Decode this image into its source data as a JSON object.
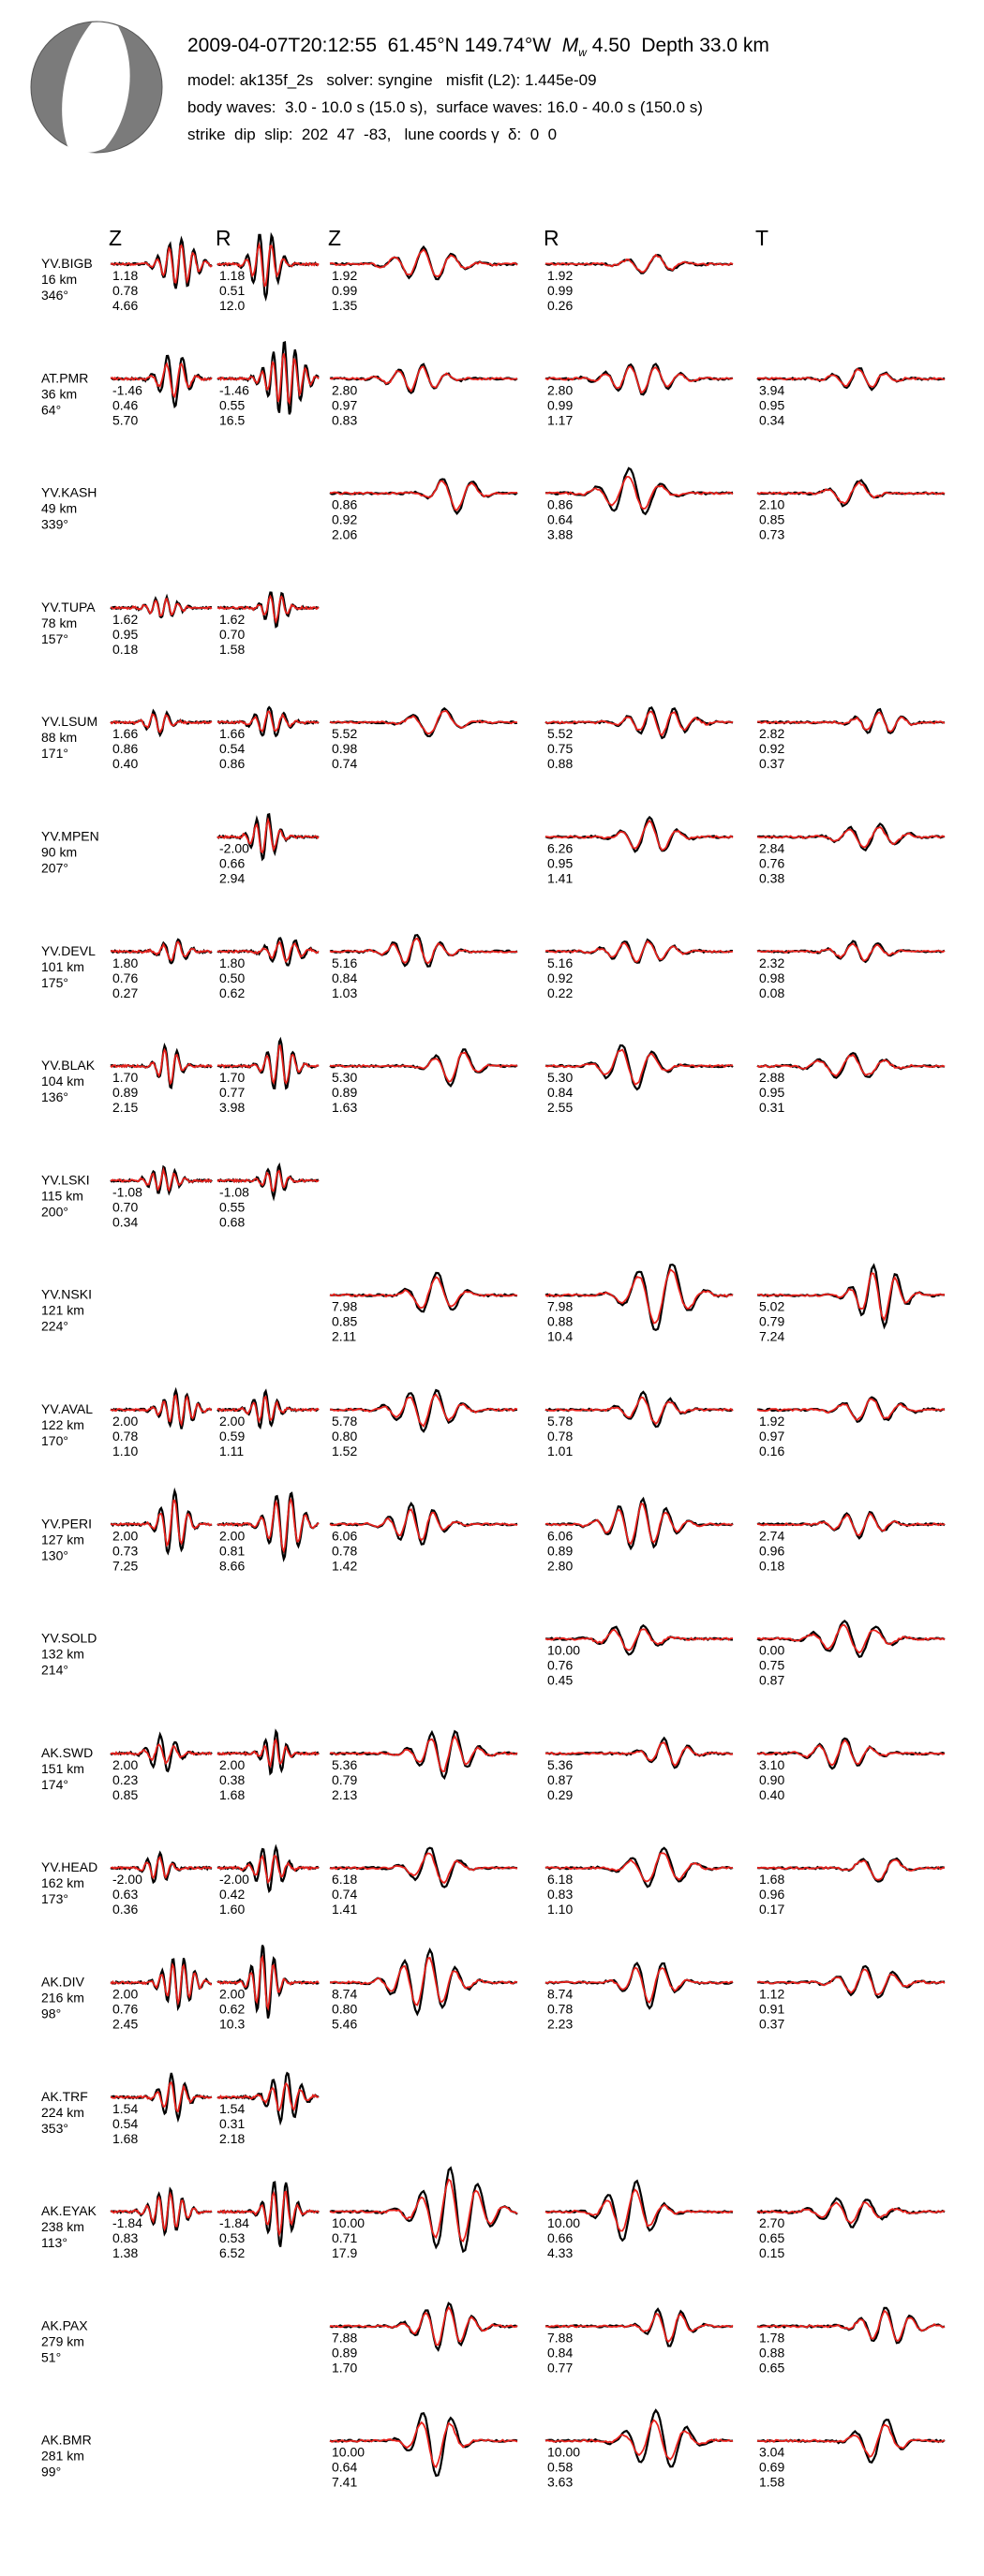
{
  "header": {
    "event_time": "2009-04-07T20:12:55",
    "lat": "61.45°N",
    "lon": "149.74°W",
    "mag_label": "M",
    "mag_sub": "w",
    "mag": "4.50",
    "depth_label": "Depth",
    "depth": "33.0 km",
    "model_line": "model: ak135f_2s   solver: syngine   misfit (L2): 1.445e-09",
    "waves_line": "body waves:  3.0 - 10.0 s (15.0 s),  surface waves: 16.0 - 40.0 s (150.0 s)",
    "mech_line": "strike  dip  slip:  202  47  -83,   lune coords γ  δ:  0  0"
  },
  "colors": {
    "observed": "#000000",
    "synthetic": "#e8221d",
    "beachball": "#7b7b7b"
  },
  "chart_data": {
    "type": "waveform-panel",
    "column_headers": [
      "Z",
      "R",
      "Z",
      "R",
      "T"
    ],
    "series_legend": [
      "observed (black)",
      "synthetic (red)"
    ],
    "stations": [
      {
        "name": "YV.BIGB",
        "dist": "16 km",
        "az": "346°",
        "cols": [
          [
            "1.18",
            "0.78",
            "4.66"
          ],
          [
            "1.18",
            "0.51",
            "12.0"
          ],
          [
            "1.92",
            "0.99",
            "1.35"
          ],
          [
            "1.92",
            "0.99",
            "0.26"
          ],
          null
        ]
      },
      {
        "name": "AT.PMR",
        "dist": "36 km",
        "az": "64°",
        "cols": [
          [
            "-1.46",
            "0.46",
            "5.70"
          ],
          [
            "-1.46",
            "0.55",
            "16.5"
          ],
          [
            "2.80",
            "0.97",
            "0.83"
          ],
          [
            "2.80",
            "0.99",
            "1.17"
          ],
          [
            "3.94",
            "0.95",
            "0.34"
          ]
        ]
      },
      {
        "name": "YV.KASH",
        "dist": "49 km",
        "az": "339°",
        "cols": [
          null,
          null,
          [
            "0.86",
            "0.92",
            "2.06"
          ],
          [
            "0.86",
            "0.64",
            "3.88"
          ],
          [
            "2.10",
            "0.85",
            "0.73"
          ]
        ]
      },
      {
        "name": "YV.TUPA",
        "dist": "78 km",
        "az": "157°",
        "cols": [
          [
            "1.62",
            "0.95",
            "0.18"
          ],
          [
            "1.62",
            "0.70",
            "1.58"
          ],
          null,
          null,
          null
        ]
      },
      {
        "name": "YV.LSUM",
        "dist": "88 km",
        "az": "171°",
        "cols": [
          [
            "1.66",
            "0.86",
            "0.40"
          ],
          [
            "1.66",
            "0.54",
            "0.86"
          ],
          [
            "5.52",
            "0.98",
            "0.74"
          ],
          [
            "5.52",
            "0.75",
            "0.88"
          ],
          [
            "2.82",
            "0.92",
            "0.37"
          ]
        ]
      },
      {
        "name": "YV.MPEN",
        "dist": "90 km",
        "az": "207°",
        "cols": [
          null,
          [
            "-2.00",
            "0.66",
            "2.94"
          ],
          null,
          [
            "6.26",
            "0.95",
            "1.41"
          ],
          [
            "2.84",
            "0.76",
            "0.38"
          ]
        ]
      },
      {
        "name": "YV.DEVL",
        "dist": "101 km",
        "az": "175°",
        "cols": [
          [
            "1.80",
            "0.76",
            "0.27"
          ],
          [
            "1.80",
            "0.50",
            "0.62"
          ],
          [
            "5.16",
            "0.84",
            "1.03"
          ],
          [
            "5.16",
            "0.92",
            "0.22"
          ],
          [
            "2.32",
            "0.98",
            "0.08"
          ]
        ]
      },
      {
        "name": "YV.BLAK",
        "dist": "104 km",
        "az": "136°",
        "cols": [
          [
            "1.70",
            "0.89",
            "2.15"
          ],
          [
            "1.70",
            "0.77",
            "3.98"
          ],
          [
            "5.30",
            "0.89",
            "1.63"
          ],
          [
            "5.30",
            "0.84",
            "2.55"
          ],
          [
            "2.88",
            "0.95",
            "0.31"
          ]
        ]
      },
      {
        "name": "YV.LSKI",
        "dist": "115 km",
        "az": "200°",
        "cols": [
          [
            "-1.08",
            "0.70",
            "0.34"
          ],
          [
            "-1.08",
            "0.55",
            "0.68"
          ],
          null,
          null,
          null
        ]
      },
      {
        "name": "YV.NSKI",
        "dist": "121 km",
        "az": "224°",
        "cols": [
          null,
          null,
          [
            "7.98",
            "0.85",
            "2.11"
          ],
          [
            "7.98",
            "0.88",
            "10.4"
          ],
          [
            "5.02",
            "0.79",
            "7.24"
          ]
        ]
      },
      {
        "name": "YV.AVAL",
        "dist": "122 km",
        "az": "170°",
        "cols": [
          [
            "2.00",
            "0.78",
            "1.10"
          ],
          [
            "2.00",
            "0.59",
            "1.11"
          ],
          [
            "5.78",
            "0.80",
            "1.52"
          ],
          [
            "5.78",
            "0.78",
            "1.01"
          ],
          [
            "1.92",
            "0.97",
            "0.16"
          ]
        ]
      },
      {
        "name": "YV.PERI",
        "dist": "127 km",
        "az": "130°",
        "cols": [
          [
            "2.00",
            "0.73",
            "7.25"
          ],
          [
            "2.00",
            "0.81",
            "8.66"
          ],
          [
            "6.06",
            "0.78",
            "1.42"
          ],
          [
            "6.06",
            "0.89",
            "2.80"
          ],
          [
            "2.74",
            "0.96",
            "0.18"
          ]
        ]
      },
      {
        "name": "YV.SOLD",
        "dist": "132 km",
        "az": "214°",
        "cols": [
          null,
          null,
          null,
          [
            "10.00",
            "0.76",
            "0.45"
          ],
          [
            "0.00",
            "0.75",
            "0.87"
          ]
        ]
      },
      {
        "name": "AK.SWD",
        "dist": "151 km",
        "az": "174°",
        "cols": [
          [
            "2.00",
            "0.23",
            "0.85"
          ],
          [
            "2.00",
            "0.38",
            "1.68"
          ],
          [
            "5.36",
            "0.79",
            "2.13"
          ],
          [
            "5.36",
            "0.87",
            "0.29"
          ],
          [
            "3.10",
            "0.90",
            "0.40"
          ]
        ]
      },
      {
        "name": "YV.HEAD",
        "dist": "162 km",
        "az": "173°",
        "cols": [
          [
            "-2.00",
            "0.63",
            "0.36"
          ],
          [
            "-2.00",
            "0.42",
            "1.60"
          ],
          [
            "6.18",
            "0.74",
            "1.41"
          ],
          [
            "6.18",
            "0.83",
            "1.10"
          ],
          [
            "1.68",
            "0.96",
            "0.17"
          ]
        ]
      },
      {
        "name": "AK.DIV",
        "dist": "216 km",
        "az": "98°",
        "cols": [
          [
            "2.00",
            "0.76",
            "2.45"
          ],
          [
            "2.00",
            "0.62",
            "10.3"
          ],
          [
            "8.74",
            "0.80",
            "5.46"
          ],
          [
            "8.74",
            "0.78",
            "2.23"
          ],
          [
            "1.12",
            "0.91",
            "0.37"
          ]
        ]
      },
      {
        "name": "AK.TRF",
        "dist": "224 km",
        "az": "353°",
        "cols": [
          [
            "1.54",
            "0.54",
            "1.68"
          ],
          [
            "1.54",
            "0.31",
            "2.18"
          ],
          null,
          null,
          null
        ]
      },
      {
        "name": "AK.EYAK",
        "dist": "238 km",
        "az": "113°",
        "cols": [
          [
            "-1.84",
            "0.83",
            "1.38"
          ],
          [
            "-1.84",
            "0.53",
            "6.52"
          ],
          [
            "10.00",
            "0.71",
            "17.9"
          ],
          [
            "10.00",
            "0.66",
            "4.33"
          ],
          [
            "2.70",
            "0.65",
            "0.15"
          ]
        ]
      },
      {
        "name": "AK.PAX",
        "dist": "279 km",
        "az": "51°",
        "cols": [
          null,
          null,
          [
            "7.88",
            "0.89",
            "1.70"
          ],
          [
            "7.88",
            "0.84",
            "0.77"
          ],
          [
            "1.78",
            "0.88",
            "0.65"
          ]
        ]
      },
      {
        "name": "AK.BMR",
        "dist": "281 km",
        "az": "99°",
        "cols": [
          null,
          null,
          [
            "10.00",
            "0.64",
            "7.41"
          ],
          [
            "10.00",
            "0.58",
            "3.63"
          ],
          [
            "3.04",
            "0.69",
            "1.58"
          ]
        ]
      }
    ]
  }
}
